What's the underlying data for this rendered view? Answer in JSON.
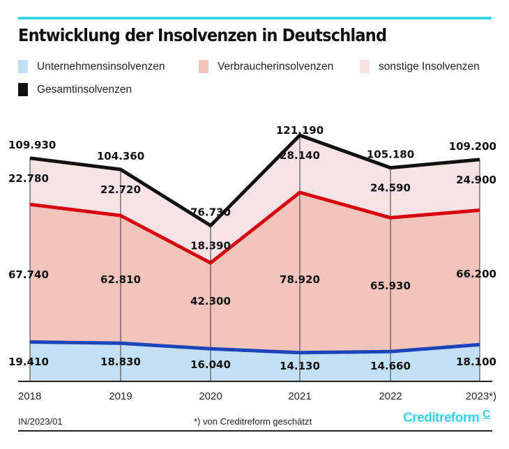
{
  "header": {
    "title": "Entwicklung der Insolvenzen in Deutschland",
    "accent_color": "#37d3e6"
  },
  "legend": [
    {
      "label": "Unternehmensinsolvenzen",
      "color": "#c3e0f7"
    },
    {
      "label": "Verbraucherinsolvenzen",
      "color": "#f2c4bc"
    },
    {
      "label": "sonstige Insolvenzen",
      "color": "#f7e3e5"
    },
    {
      "label": "Gesamtinsolvenzen",
      "color": "#111111"
    }
  ],
  "chart_data": {
    "type": "area",
    "stacked": true,
    "title": "Entwicklung der Insolvenzen in Deutschland",
    "xlabel": "",
    "ylabel": "",
    "categories": [
      "2018",
      "2019",
      "2020",
      "2021",
      "2022",
      "2023*)"
    ],
    "ylim": [
      0,
      130000
    ],
    "grid": "vertical lines at each year",
    "legend_position": "top",
    "series": [
      {
        "name": "Unternehmensinsolvenzen",
        "fill": "#c3e0f7",
        "line": "#1a44b8",
        "values": [
          19410,
          18830,
          16040,
          14130,
          14660,
          18100
        ],
        "labels": [
          "19.410",
          "18.830",
          "16.040",
          "14.130",
          "14.660",
          "18.100"
        ]
      },
      {
        "name": "Verbraucherinsolvenzen",
        "fill": "#f2c4bc",
        "line": "#d6000f",
        "values": [
          67740,
          62810,
          42300,
          78920,
          65930,
          66200
        ],
        "labels": [
          "67.740",
          "62.810",
          "42.300",
          "78.920",
          "65.930",
          "66.200"
        ]
      },
      {
        "name": "sonstige Insolvenzen",
        "fill": "#f7e3e5",
        "line": "#111111",
        "values": [
          22780,
          22720,
          18390,
          28140,
          24590,
          24900
        ],
        "labels": [
          "22.780",
          "22.720",
          "18.390",
          "28.140",
          "24.590",
          "24.900"
        ]
      }
    ],
    "totals": {
      "name": "Gesamtinsolvenzen",
      "values": [
        109930,
        104360,
        76730,
        121190,
        105180,
        109200
      ],
      "labels": [
        "109.930",
        "104.360",
        "76.730",
        "121.190",
        "105.180",
        "109.200"
      ]
    }
  },
  "footer": {
    "code": "IN/2023/01",
    "note": "*) von Creditreform geschätzt",
    "brand": "Creditreform"
  }
}
